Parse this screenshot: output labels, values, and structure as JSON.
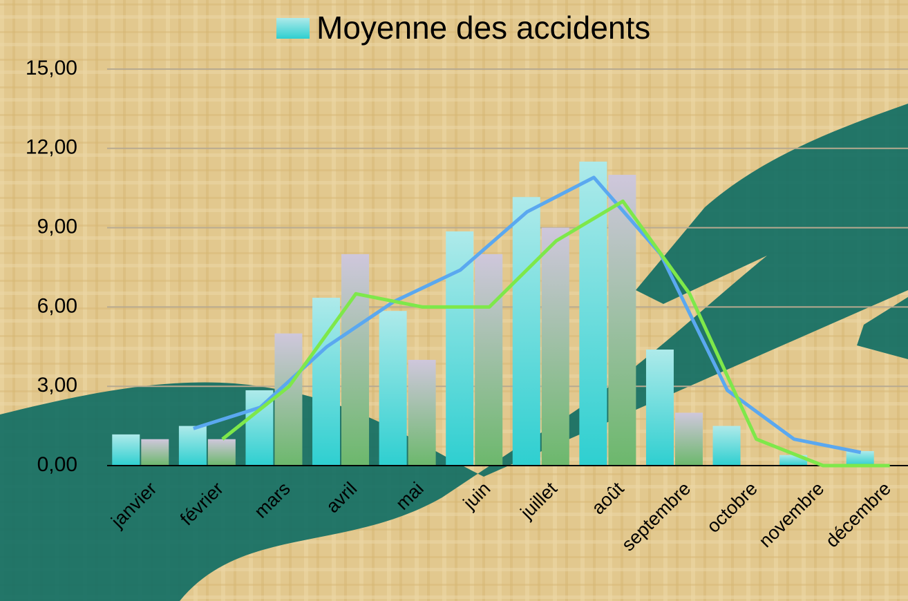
{
  "chart_data": {
    "type": "bar",
    "legend": "Moyenne des accidents",
    "categories": [
      "janvier",
      "février",
      "mars",
      "avril",
      "mai",
      "juin",
      "juillet",
      "août",
      "septembre",
      "octobre",
      "novembre",
      "décembre"
    ],
    "series": [
      {
        "name": "Moyenne des accidents",
        "type": "bar",
        "color": "#5fd8dc",
        "values": [
          1.18,
          1.5,
          2.85,
          6.35,
          5.85,
          8.86,
          10.16,
          11.5,
          4.39,
          1.5,
          0.4,
          0.55
        ]
      },
      {
        "type": "bar",
        "color": "#c9c3d6",
        "values": [
          1.0,
          1.0,
          5.0,
          8.0,
          4.0,
          8.0,
          9.0,
          11.0,
          2.0,
          0,
          0,
          0
        ]
      },
      {
        "type": "line",
        "color": "#5aa8f0",
        "values": [
          null,
          1.4,
          2.2,
          4.5,
          6.2,
          7.4,
          9.6,
          10.9,
          8.0,
          2.85,
          1.0,
          0.5
        ]
      },
      {
        "type": "line",
        "color": "#7ee84a",
        "values": [
          null,
          1.0,
          3.0,
          6.5,
          6.0,
          6.0,
          8.5,
          10.0,
          6.5,
          1.0,
          0,
          0
        ]
      }
    ],
    "ylim": [
      0,
      15
    ],
    "yticks": [
      {
        "value": 0,
        "label": "0,00"
      },
      {
        "value": 3,
        "label": "3,00"
      },
      {
        "value": 6,
        "label": "6,00"
      },
      {
        "value": 9,
        "label": "9,00"
      },
      {
        "value": 12,
        "label": "12,00"
      },
      {
        "value": 15,
        "label": "15,00"
      }
    ],
    "grid": true
  }
}
